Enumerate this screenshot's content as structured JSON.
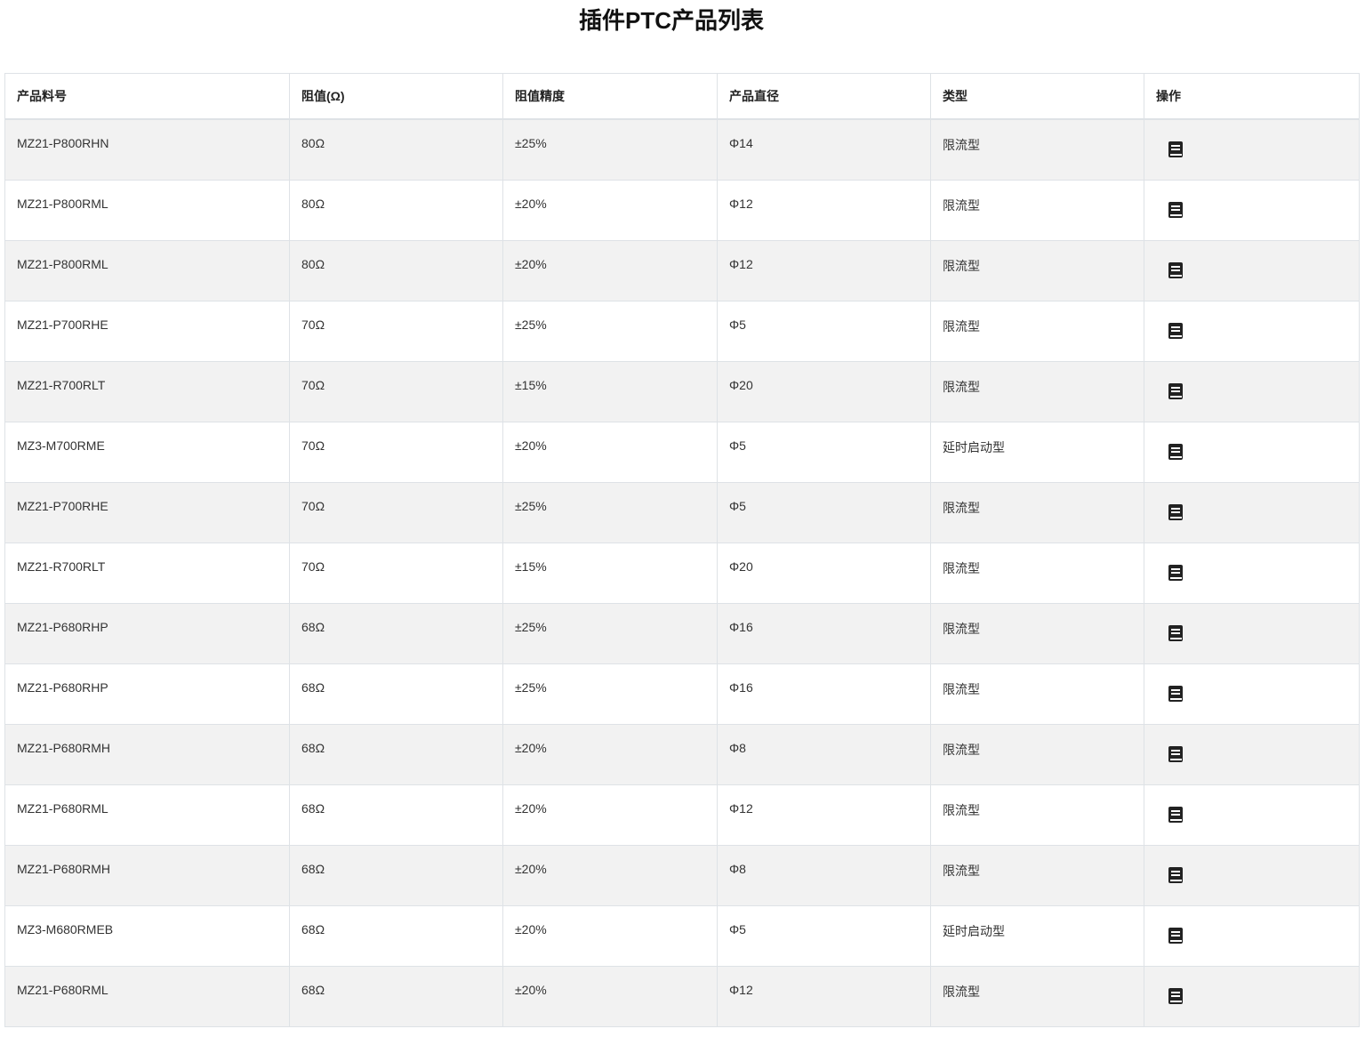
{
  "title": "插件PTC产品列表",
  "columns": [
    "产品料号",
    "阻值(Ω)",
    "阻值精度",
    "产品直径",
    "类型",
    "操作"
  ],
  "action_icon": "book-icon",
  "rows": [
    [
      "MZ21-P800RHN",
      "80Ω",
      "±25%",
      "Φ14",
      "限流型"
    ],
    [
      "MZ21-P800RML",
      "80Ω",
      "±20%",
      "Φ12",
      "限流型"
    ],
    [
      "MZ21-P800RML",
      "80Ω",
      "±20%",
      "Φ12",
      "限流型"
    ],
    [
      "MZ21-P700RHE",
      "70Ω",
      "±25%",
      "Φ5",
      "限流型"
    ],
    [
      "MZ21-R700RLT",
      "70Ω",
      "±15%",
      "Φ20",
      "限流型"
    ],
    [
      "MZ3-M700RME",
      "70Ω",
      "±20%",
      "Φ5",
      "延时启动型"
    ],
    [
      "MZ21-P700RHE",
      "70Ω",
      "±25%",
      "Φ5",
      "限流型"
    ],
    [
      "MZ21-R700RLT",
      "70Ω",
      "±15%",
      "Φ20",
      "限流型"
    ],
    [
      "MZ21-P680RHP",
      "68Ω",
      "±25%",
      "Φ16",
      "限流型"
    ],
    [
      "MZ21-P680RHP",
      "68Ω",
      "±25%",
      "Φ16",
      "限流型"
    ],
    [
      "MZ21-P680RMH",
      "68Ω",
      "±20%",
      "Φ8",
      "限流型"
    ],
    [
      "MZ21-P680RML",
      "68Ω",
      "±20%",
      "Φ12",
      "限流型"
    ],
    [
      "MZ21-P680RMH",
      "68Ω",
      "±20%",
      "Φ8",
      "限流型"
    ],
    [
      "MZ3-M680RMEB",
      "68Ω",
      "±20%",
      "Φ5",
      "延时启动型"
    ],
    [
      "MZ21-P680RML",
      "68Ω",
      "±20%",
      "Φ12",
      "限流型"
    ]
  ]
}
